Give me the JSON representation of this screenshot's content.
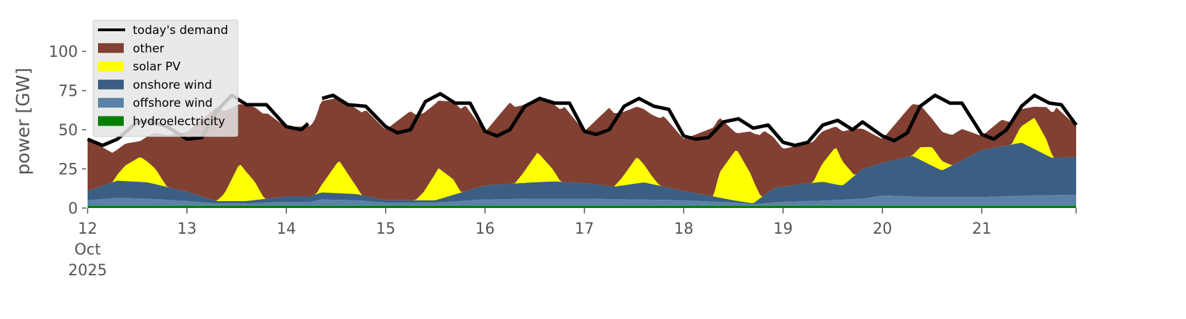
{
  "chart_data": {
    "type": "area",
    "title": "",
    "xlabel": "",
    "ylabel": "power [GW]",
    "ylim": [
      0,
      120
    ],
    "yticks": [
      0,
      25,
      50,
      75,
      100
    ],
    "xlim": [
      12.0,
      21.95
    ],
    "xticks": [
      {
        "x": 12,
        "lines": [
          "12",
          "Oct",
          "2025"
        ]
      },
      {
        "x": 13,
        "lines": [
          "13"
        ]
      },
      {
        "x": 14,
        "lines": [
          "14"
        ]
      },
      {
        "x": 15,
        "lines": [
          "15"
        ]
      },
      {
        "x": 16,
        "lines": [
          "16"
        ]
      },
      {
        "x": 17,
        "lines": [
          "17"
        ]
      },
      {
        "x": 18,
        "lines": [
          "18"
        ]
      },
      {
        "x": 19,
        "lines": [
          "19"
        ]
      },
      {
        "x": 20,
        "lines": [
          "20"
        ]
      },
      {
        "x": 21,
        "lines": [
          "21"
        ]
      }
    ],
    "grid": false,
    "legend_position": "top-left",
    "stack_order": [
      "hydroelectricity",
      "offshore wind",
      "onshore wind",
      "solar PV",
      "other"
    ],
    "series": [
      {
        "name": "hydroelectricity",
        "kind": "stack",
        "color": "#008000",
        "points": [
          [
            12.0,
            1.5
          ],
          [
            13.0,
            1.5
          ],
          [
            14.0,
            1.5
          ],
          [
            14.25,
            1.5
          ],
          [
            14.35,
            1.5
          ],
          [
            15.0,
            1.5
          ],
          [
            16.0,
            1.5
          ],
          [
            17.0,
            1.5
          ],
          [
            18.0,
            1.5
          ],
          [
            19.0,
            1.5
          ],
          [
            20.0,
            1.5
          ],
          [
            21.0,
            1.5
          ],
          [
            21.95,
            1.5
          ]
        ]
      },
      {
        "name": "offshore wind",
        "kind": "stack",
        "color": "#5b82a6",
        "points": [
          [
            12.0,
            3.5
          ],
          [
            12.3,
            5
          ],
          [
            12.6,
            4.5
          ],
          [
            13.0,
            3
          ],
          [
            13.3,
            1.5
          ],
          [
            13.6,
            1.5
          ],
          [
            14.0,
            2.5
          ],
          [
            14.25,
            2.5
          ],
          [
            14.35,
            4
          ],
          [
            14.7,
            3.5
          ],
          [
            15.0,
            2
          ],
          [
            15.5,
            2
          ],
          [
            16.0,
            4
          ],
          [
            16.5,
            4.5
          ],
          [
            17.0,
            4.5
          ],
          [
            17.5,
            4
          ],
          [
            18.0,
            3.5
          ],
          [
            18.5,
            2
          ],
          [
            18.7,
            1
          ],
          [
            19.0,
            2.5
          ],
          [
            19.5,
            3.5
          ],
          [
            19.8,
            4.5
          ],
          [
            20.0,
            6.5
          ],
          [
            20.5,
            5.5
          ],
          [
            21.0,
            5.5
          ],
          [
            21.5,
            6.5
          ],
          [
            21.95,
            7
          ]
        ]
      },
      {
        "name": "onshore wind",
        "kind": "stack",
        "color": "#3b5f82",
        "points": [
          [
            12.0,
            6
          ],
          [
            12.3,
            11
          ],
          [
            12.6,
            10.5
          ],
          [
            13.0,
            6
          ],
          [
            13.3,
            1.5
          ],
          [
            13.6,
            1.5
          ],
          [
            14.0,
            3.5
          ],
          [
            14.25,
            3.5
          ],
          [
            14.35,
            4.5
          ],
          [
            14.7,
            4
          ],
          [
            15.0,
            1.5
          ],
          [
            15.5,
            1.5
          ],
          [
            16.0,
            9
          ],
          [
            16.5,
            10.5
          ],
          [
            16.7,
            11
          ],
          [
            17.0,
            10
          ],
          [
            17.3,
            8
          ],
          [
            17.6,
            11
          ],
          [
            18.0,
            6
          ],
          [
            18.5,
            1.5
          ],
          [
            18.7,
            0.5
          ],
          [
            18.9,
            9
          ],
          [
            19.2,
            11
          ],
          [
            19.4,
            12
          ],
          [
            19.6,
            9
          ],
          [
            19.8,
            19
          ],
          [
            20.0,
            21
          ],
          [
            20.3,
            26
          ],
          [
            20.6,
            17
          ],
          [
            21.0,
            30
          ],
          [
            21.4,
            34
          ],
          [
            21.7,
            24
          ],
          [
            21.95,
            24
          ]
        ]
      },
      {
        "name": "solar PV",
        "kind": "stack",
        "color": "#ffff00",
        "points": [
          [
            12.0,
            0
          ],
          [
            12.25,
            0
          ],
          [
            12.38,
            10
          ],
          [
            12.53,
            16
          ],
          [
            12.68,
            10
          ],
          [
            12.8,
            0
          ],
          [
            13.3,
            0
          ],
          [
            13.38,
            5
          ],
          [
            13.53,
            24
          ],
          [
            13.68,
            12
          ],
          [
            13.78,
            0
          ],
          [
            14.3,
            0
          ],
          [
            14.38,
            7
          ],
          [
            14.53,
            21
          ],
          [
            14.68,
            7
          ],
          [
            14.76,
            0
          ],
          [
            15.3,
            0
          ],
          [
            15.38,
            5
          ],
          [
            15.53,
            20
          ],
          [
            15.68,
            10
          ],
          [
            15.76,
            0
          ],
          [
            16.3,
            0
          ],
          [
            16.38,
            6
          ],
          [
            16.53,
            19
          ],
          [
            16.68,
            8
          ],
          [
            16.76,
            0
          ],
          [
            17.3,
            0
          ],
          [
            17.38,
            5
          ],
          [
            17.53,
            17
          ],
          [
            17.68,
            5
          ],
          [
            17.76,
            0
          ],
          [
            18.3,
            0
          ],
          [
            18.36,
            16
          ],
          [
            18.53,
            33
          ],
          [
            18.68,
            18
          ],
          [
            18.78,
            0
          ],
          [
            19.3,
            0
          ],
          [
            19.38,
            10
          ],
          [
            19.53,
            24
          ],
          [
            19.65,
            9
          ],
          [
            19.72,
            0
          ],
          [
            20.3,
            0
          ],
          [
            20.38,
            8
          ],
          [
            20.5,
            12
          ],
          [
            20.6,
            6
          ],
          [
            20.7,
            0
          ],
          [
            21.3,
            0
          ],
          [
            21.38,
            9
          ],
          [
            21.53,
            20
          ],
          [
            21.65,
            10
          ],
          [
            21.72,
            0
          ],
          [
            21.95,
            0
          ]
        ]
      },
      {
        "name": "other",
        "kind": "stack",
        "color": "#814032",
        "points": [
          [
            12.0,
            33
          ],
          [
            12.3,
            16
          ],
          [
            12.53,
            10
          ],
          [
            12.8,
            33
          ],
          [
            13.0,
            38
          ],
          [
            13.3,
            60
          ],
          [
            13.53,
            38
          ],
          [
            13.8,
            55
          ],
          [
            14.0,
            44
          ],
          [
            14.25,
            45
          ],
          [
            14.35,
            54
          ],
          [
            14.53,
            40
          ],
          [
            14.8,
            55
          ],
          [
            15.0,
            45
          ],
          [
            15.25,
            57
          ],
          [
            15.53,
            43
          ],
          [
            15.8,
            55
          ],
          [
            16.0,
            34
          ],
          [
            16.25,
            52
          ],
          [
            16.53,
            34
          ],
          [
            16.8,
            48
          ],
          [
            17.0,
            33
          ],
          [
            17.25,
            50
          ],
          [
            17.53,
            32
          ],
          [
            17.8,
            45
          ],
          [
            18.0,
            33
          ],
          [
            18.3,
            44
          ],
          [
            18.53,
            10
          ],
          [
            18.8,
            42
          ],
          [
            19.0,
            24
          ],
          [
            19.3,
            26
          ],
          [
            19.53,
            13
          ],
          [
            19.72,
            30
          ],
          [
            20.0,
            15
          ],
          [
            20.3,
            33
          ],
          [
            20.5,
            18
          ],
          [
            20.8,
            20
          ],
          [
            21.0,
            9
          ],
          [
            21.2,
            17
          ],
          [
            21.53,
            7
          ],
          [
            21.75,
            32
          ],
          [
            21.95,
            20
          ]
        ]
      },
      {
        "name": "today's demand",
        "kind": "line",
        "color": "#000000",
        "points": [
          [
            12.0,
            44
          ],
          [
            12.15,
            40
          ],
          [
            12.3,
            44
          ],
          [
            12.5,
            55
          ],
          [
            12.65,
            55
          ],
          [
            12.8,
            52
          ],
          [
            13.0,
            44
          ],
          [
            13.15,
            45
          ],
          [
            13.3,
            62
          ],
          [
            13.45,
            72
          ],
          [
            13.6,
            66
          ],
          [
            13.8,
            66
          ],
          [
            14.0,
            52
          ],
          [
            14.15,
            50
          ],
          [
            14.22,
            54
          ],
          [
            14.33,
            null
          ],
          [
            14.36,
            70
          ],
          [
            14.47,
            72
          ],
          [
            14.62,
            66
          ],
          [
            14.8,
            65
          ],
          [
            15.0,
            52
          ],
          [
            15.12,
            48
          ],
          [
            15.25,
            50
          ],
          [
            15.4,
            68
          ],
          [
            15.55,
            73
          ],
          [
            15.7,
            67
          ],
          [
            15.85,
            67
          ],
          [
            16.0,
            49
          ],
          [
            16.12,
            46
          ],
          [
            16.25,
            50
          ],
          [
            16.4,
            65
          ],
          [
            16.55,
            70
          ],
          [
            16.7,
            67
          ],
          [
            16.85,
            67
          ],
          [
            17.0,
            49
          ],
          [
            17.12,
            47
          ],
          [
            17.25,
            50
          ],
          [
            17.4,
            65
          ],
          [
            17.55,
            70
          ],
          [
            17.7,
            65
          ],
          [
            17.85,
            63
          ],
          [
            18.0,
            46
          ],
          [
            18.12,
            44
          ],
          [
            18.25,
            45
          ],
          [
            18.4,
            55
          ],
          [
            18.55,
            57
          ],
          [
            18.7,
            51
          ],
          [
            18.85,
            53
          ],
          [
            19.0,
            42
          ],
          [
            19.12,
            40
          ],
          [
            19.25,
            42
          ],
          [
            19.4,
            53
          ],
          [
            19.55,
            56
          ],
          [
            19.7,
            50
          ],
          [
            19.8,
            55
          ],
          [
            20.0,
            46
          ],
          [
            20.12,
            43
          ],
          [
            20.25,
            48
          ],
          [
            20.38,
            65
          ],
          [
            20.53,
            72
          ],
          [
            20.68,
            67
          ],
          [
            20.8,
            67
          ],
          [
            21.0,
            47
          ],
          [
            21.12,
            44
          ],
          [
            21.25,
            50
          ],
          [
            21.4,
            65
          ],
          [
            21.53,
            72
          ],
          [
            21.68,
            67
          ],
          [
            21.8,
            66
          ],
          [
            21.95,
            53
          ]
        ]
      }
    ],
    "legend": [
      "today's demand",
      "other",
      "solar PV",
      "onshore wind",
      "offshore wind",
      "hydroelectricity"
    ]
  }
}
